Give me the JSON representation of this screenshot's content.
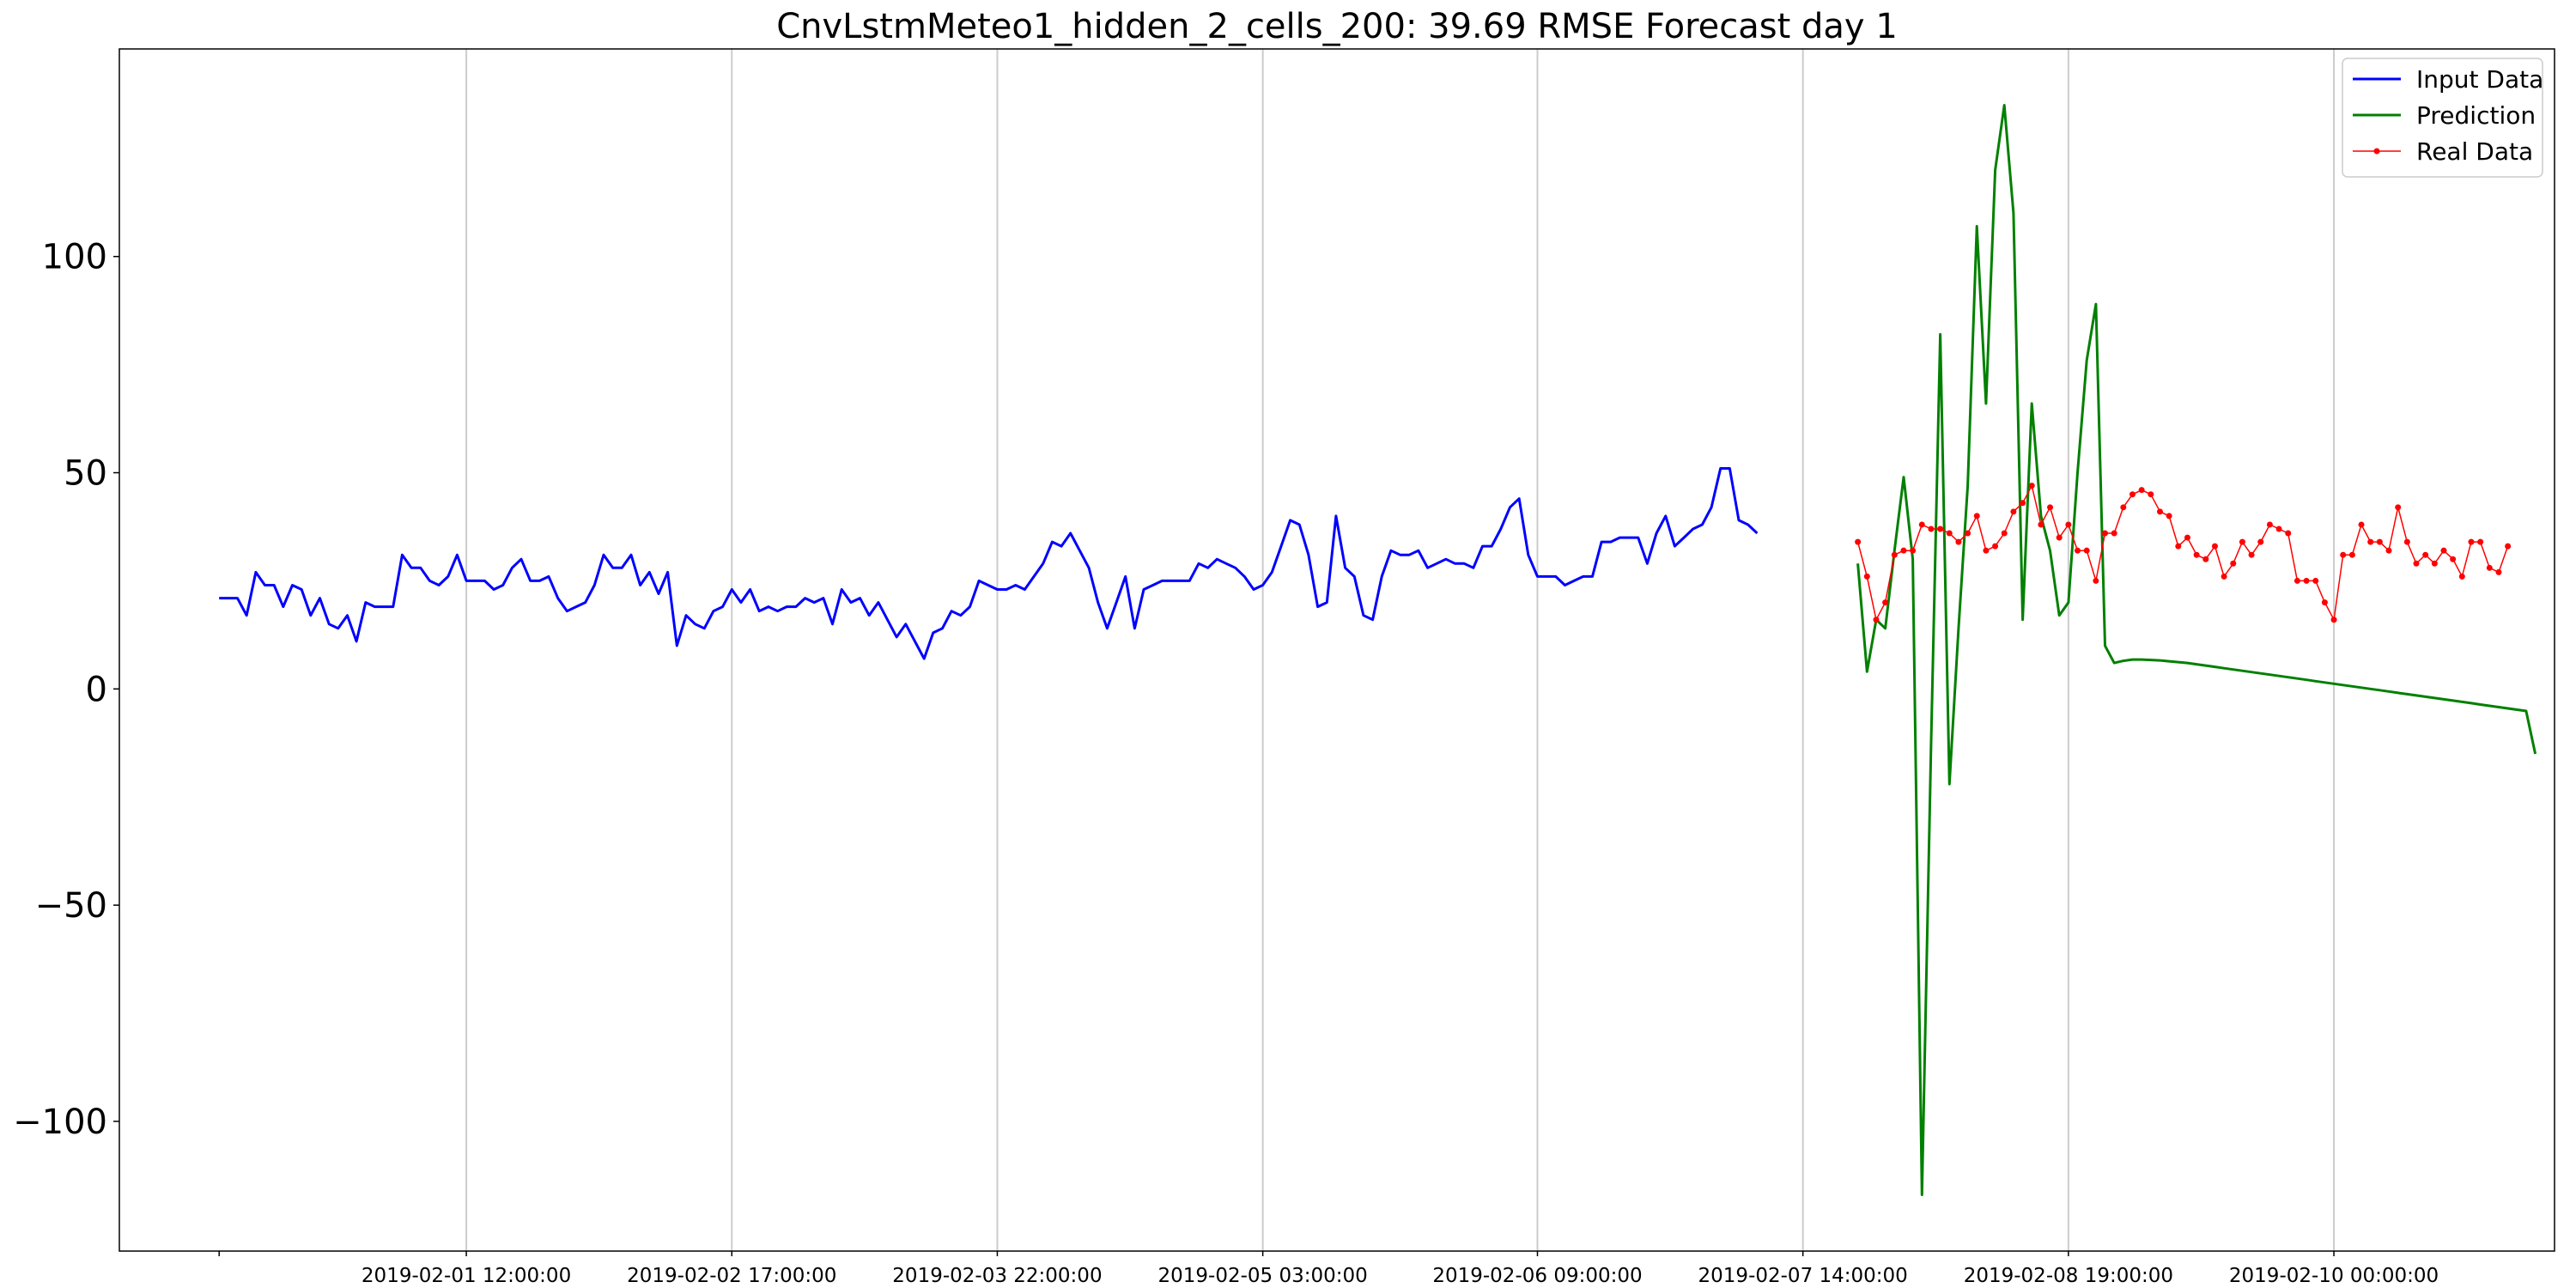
{
  "chart_data": {
    "type": "line",
    "title": "CnvLstmMeteo1_hidden_2_cells_200: 39.69 RMSE Forecast day 1",
    "xlabel": "",
    "ylabel": "",
    "ylim": [
      -130,
      148
    ],
    "x_ticks": [
      {
        "x": 27,
        "label": "2019-02-01 12:00:00"
      },
      {
        "x": 56,
        "label": "2019-02-02 17:00:00"
      },
      {
        "x": 85,
        "label": "2019-02-03 22:00:00"
      },
      {
        "x": 114,
        "label": "2019-02-05 03:00:00"
      },
      {
        "x": 144,
        "label": "2019-02-06 09:00:00"
      },
      {
        "x": 173,
        "label": "2019-02-07 14:00:00"
      },
      {
        "x": 202,
        "label": "2019-02-08 19:00:00"
      },
      {
        "x": 231,
        "label": "2019-02-10 00:00:00"
      }
    ],
    "y_ticks": [
      {
        "value": -100,
        "label": "−100"
      },
      {
        "value": -50,
        "label": "−50"
      },
      {
        "value": 0,
        "label": "0"
      },
      {
        "value": 50,
        "label": "50"
      },
      {
        "value": 100,
        "label": "100"
      }
    ],
    "grid": "vertical",
    "legend_position": "top-right",
    "series": [
      {
        "name": "Input Data",
        "color": "#0000ff",
        "marker": false,
        "x_start": 0,
        "values": [
          21,
          21,
          21,
          17,
          27,
          24,
          24,
          19,
          24,
          23,
          17,
          21,
          15,
          14,
          17,
          11,
          20,
          19,
          19,
          19,
          31,
          28,
          28,
          25,
          24,
          26,
          31,
          25,
          25,
          25,
          23,
          24,
          28,
          30,
          25,
          25,
          26,
          21,
          18,
          19,
          20,
          24,
          31,
          28,
          28,
          31,
          24,
          27,
          22,
          27,
          10,
          17,
          15,
          14,
          18,
          19,
          23,
          20,
          23,
          18,
          19,
          18,
          19,
          19,
          21,
          20,
          21,
          15,
          23,
          20,
          21,
          17,
          20,
          16,
          12,
          15,
          11,
          7,
          13,
          14,
          18,
          17,
          19,
          25,
          24,
          23,
          23,
          24,
          23,
          26,
          29,
          34,
          33,
          36,
          32,
          28,
          20,
          14,
          20,
          26,
          14,
          23,
          24,
          25,
          25,
          25,
          25,
          29,
          28,
          30,
          29,
          28,
          26,
          23,
          24,
          27,
          33,
          39,
          38,
          31,
          19,
          20,
          40,
          28,
          26,
          17,
          16,
          26,
          32,
          31,
          31,
          32,
          28,
          29,
          30,
          29,
          29,
          28,
          33,
          33,
          37,
          42,
          44,
          31,
          26,
          26,
          26,
          24,
          25,
          26,
          26,
          34,
          34,
          35,
          35,
          35,
          29,
          36,
          40,
          33,
          35,
          37,
          38,
          42,
          51,
          51,
          39,
          38,
          36
        ]
      },
      {
        "name": "Prediction",
        "color": "#008000",
        "marker": false,
        "x_start": 179,
        "values": [
          29,
          4,
          16,
          14,
          32,
          49,
          30,
          -117,
          -13,
          82,
          -22,
          14,
          47,
          107,
          66,
          120,
          135,
          110,
          16,
          66,
          40,
          32,
          17,
          20,
          50,
          76,
          89,
          10,
          6,
          6.5,
          6.8,
          6.8,
          6.7,
          6.6,
          6.4,
          6.2,
          6,
          5.7,
          5.4,
          5.1,
          4.8,
          4.5,
          4.2,
          3.9,
          3.6,
          3.3,
          3,
          2.7,
          2.4,
          2.1,
          1.8,
          1.5,
          1.2,
          0.9,
          0.6,
          0.3,
          0,
          -0.3,
          -0.6,
          -0.9,
          -1.2,
          -1.5,
          -1.8,
          -2.1,
          -2.4,
          -2.7,
          -3,
          -3.3,
          -3.6,
          -3.9,
          -4.2,
          -4.5,
          -4.8,
          -5.1,
          -15
        ]
      },
      {
        "name": "Real Data",
        "color": "#ff0000",
        "marker": true,
        "x_start": 179,
        "values": [
          34,
          26,
          16,
          20,
          31,
          32,
          32,
          38,
          37,
          37,
          36,
          34,
          36,
          40,
          32,
          33,
          36,
          41,
          43,
          47,
          38,
          42,
          35,
          38,
          32,
          32,
          25,
          36,
          36,
          42,
          45,
          46,
          45,
          41,
          40,
          33,
          35,
          31,
          30,
          33,
          26,
          29,
          34,
          31,
          34,
          38,
          37,
          36,
          25,
          25,
          25,
          20,
          16,
          31,
          31,
          38,
          34,
          34,
          32,
          42,
          34,
          29,
          31,
          29,
          32,
          30,
          26,
          34,
          34,
          28,
          27,
          33
        ]
      }
    ]
  }
}
